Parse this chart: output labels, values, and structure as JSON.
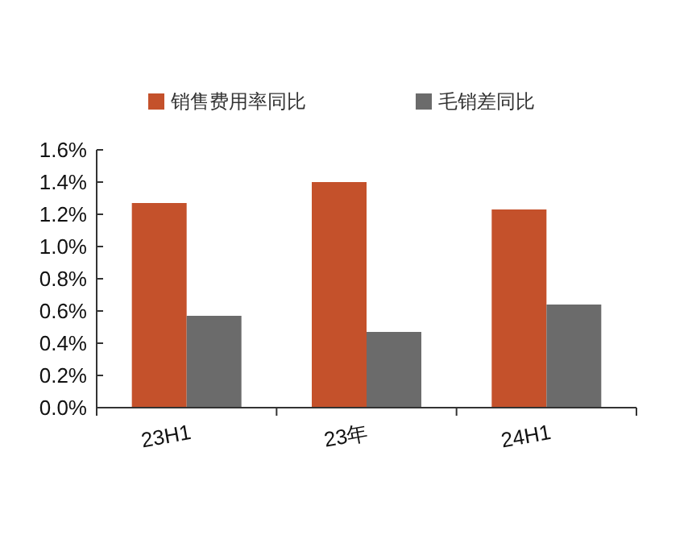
{
  "chart_data": {
    "type": "bar",
    "categories": [
      "23H1",
      "23年",
      "24H1"
    ],
    "series": [
      {
        "name": "销售费用率同比",
        "color": "#c4512b",
        "values": [
          1.27,
          1.4,
          1.23
        ]
      },
      {
        "name": "毛销差同比",
        "color": "#6b6b6b",
        "values": [
          0.57,
          0.47,
          0.64
        ]
      }
    ],
    "ylim": [
      0,
      1.6
    ],
    "yticks": [
      {
        "value": 0,
        "label": "0.0%"
      },
      {
        "value": 0.2,
        "label": "0.2%"
      },
      {
        "value": 0.4,
        "label": "0.4%"
      },
      {
        "value": 0.6,
        "label": "0.6%"
      },
      {
        "value": 0.8,
        "label": "0.8%"
      },
      {
        "value": 1.0,
        "label": "1.0%"
      },
      {
        "value": 1.2,
        "label": "1.2%"
      },
      {
        "value": 1.4,
        "label": "1.4%"
      },
      {
        "value": 1.6,
        "label": "1.6%"
      }
    ],
    "legend": "top",
    "grid": false
  }
}
